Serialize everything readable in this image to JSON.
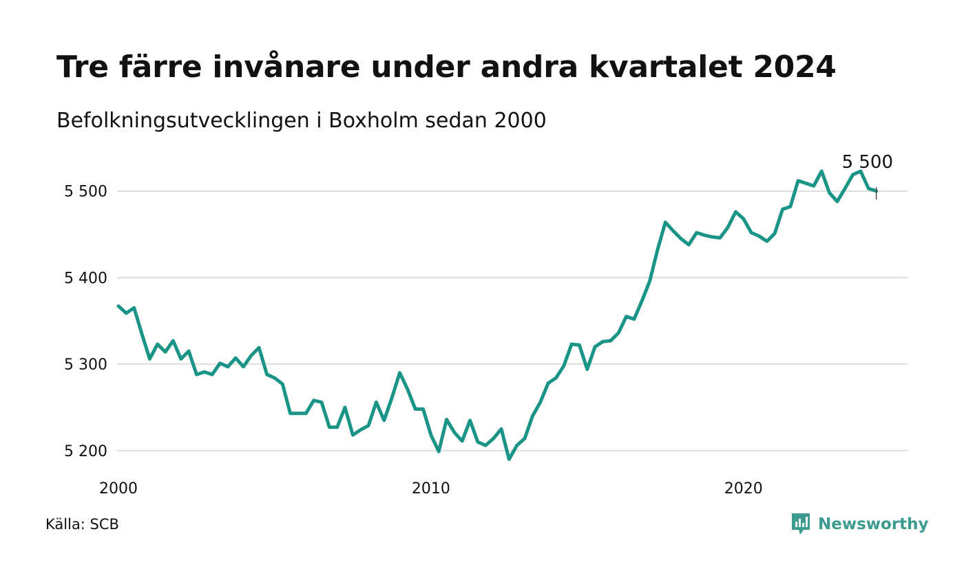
{
  "title": "Tre färre invånare under andra kvartalet 2024",
  "subtitle": "Befolkningsutvecklingen i Boxholm sedan 2000",
  "source": "Källa: SCB",
  "logo_text": "Newsworthy",
  "colors": {
    "line": "#1a9486",
    "grid": "#dddddd",
    "logo": "#3d9a8e",
    "text": "#111111"
  },
  "chart_data": {
    "type": "line",
    "title": "Tre färre invånare under andra kvartalet 2024",
    "subtitle": "Befolkningsutvecklingen i Boxholm sedan 2000",
    "xlabel": "",
    "ylabel": "",
    "x_ticks": [
      {
        "value": 2000,
        "label": "2000"
      },
      {
        "value": 2010,
        "label": "2010"
      },
      {
        "value": 2020,
        "label": "2020"
      }
    ],
    "y_ticks": [
      {
        "value": 5200,
        "label": "5 200"
      },
      {
        "value": 5300,
        "label": "5 300"
      },
      {
        "value": 5400,
        "label": "5 400"
      },
      {
        "value": 5500,
        "label": "5 500"
      }
    ],
    "xlim": [
      2000,
      2025.25
    ],
    "ylim": [
      5180,
      5530
    ],
    "grid": "horizontal",
    "annotation": {
      "label": "5 500",
      "x": 2024.5,
      "y": 5500
    },
    "series": [
      {
        "x": [
          "2000Q1",
          "2000Q2",
          "2000Q3",
          "2000Q4",
          "2001Q1",
          "2001Q2",
          "2001Q3",
          "2001Q4",
          "2002Q1",
          "2002Q2",
          "2002Q3",
          "2002Q4",
          "2003Q1",
          "2003Q2",
          "2003Q3",
          "2003Q4",
          "2004Q1",
          "2004Q2",
          "2004Q3",
          "2004Q4",
          "2005Q1",
          "2005Q2",
          "2005Q3",
          "2005Q4",
          "2006Q1",
          "2006Q2",
          "2006Q3",
          "2006Q4",
          "2007Q1",
          "2007Q2",
          "2007Q3",
          "2007Q4",
          "2008Q1",
          "2008Q2",
          "2008Q3",
          "2008Q4",
          "2009Q1",
          "2009Q2",
          "2009Q3",
          "2009Q4",
          "2010Q1",
          "2010Q2",
          "2010Q3",
          "2010Q4",
          "2011Q1",
          "2011Q2",
          "2011Q3",
          "2011Q4",
          "2012Q1",
          "2012Q2",
          "2012Q3",
          "2012Q4",
          "2013Q1",
          "2013Q2",
          "2013Q3",
          "2013Q4",
          "2014Q1",
          "2014Q2",
          "2014Q3",
          "2014Q4",
          "2015Q1",
          "2015Q2",
          "2015Q3",
          "2015Q4",
          "2016Q1",
          "2016Q2",
          "2016Q3",
          "2016Q4",
          "2017Q1",
          "2017Q2",
          "2017Q3",
          "2017Q4",
          "2018Q1",
          "2018Q2",
          "2018Q3",
          "2018Q4",
          "2019Q1",
          "2019Q2",
          "2019Q3",
          "2019Q4",
          "2020Q1",
          "2020Q2",
          "2020Q3",
          "2020Q4",
          "2021Q1",
          "2021Q2",
          "2021Q3",
          "2021Q4",
          "2022Q1",
          "2022Q2",
          "2022Q3",
          "2022Q4",
          "2023Q1",
          "2023Q2",
          "2023Q3",
          "2023Q4",
          "2024Q1",
          "2024Q2"
        ],
        "values": [
          5367,
          5359,
          5365,
          5335,
          5306,
          5323,
          5314,
          5327,
          5306,
          5315,
          5288,
          5291,
          5288,
          5301,
          5297,
          5307,
          5297,
          5310,
          5319,
          5288,
          5284,
          5277,
          5243,
          5243,
          5243,
          5258,
          5256,
          5227,
          5227,
          5250,
          5218,
          5224,
          5229,
          5256,
          5235,
          5261,
          5290,
          5271,
          5248,
          5248,
          5218,
          5199,
          5236,
          5221,
          5211,
          5235,
          5210,
          5206,
          5214,
          5225,
          5190,
          5206,
          5214,
          5240,
          5256,
          5278,
          5284,
          5298,
          5323,
          5322,
          5294,
          5320,
          5326,
          5327,
          5336,
          5355,
          5352,
          5373,
          5396,
          5432,
          5464,
          5454,
          5445,
          5438,
          5452,
          5449,
          5447,
          5446,
          5458,
          5476,
          5468,
          5452,
          5448,
          5442,
          5451,
          5479,
          5482,
          5512,
          5509,
          5506,
          5523,
          5498,
          5488,
          5503,
          5519,
          5523,
          5503,
          5500
        ]
      }
    ]
  }
}
